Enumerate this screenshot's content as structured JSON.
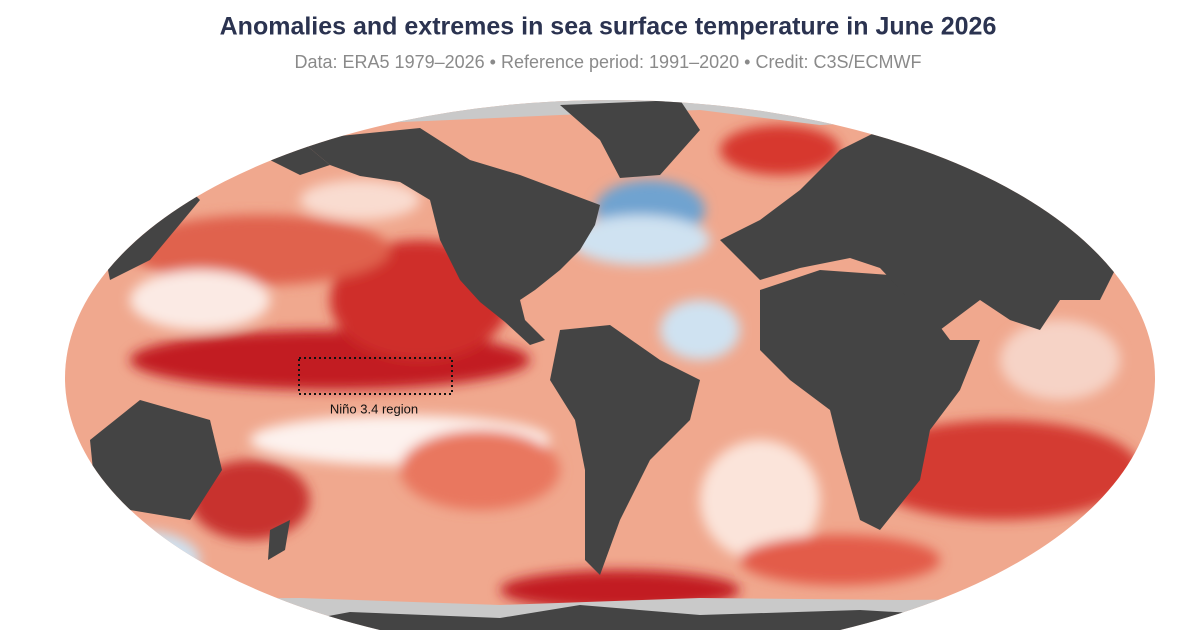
{
  "header": {
    "title": "Anomalies and extremes in sea surface temperature in June 2026",
    "subtitle": "Data: ERA5 1979–2026 • Reference period: 1991–2020 • Credit: C3S/ECMWF"
  },
  "map": {
    "annotation": "Niño 3.4 region"
  }
}
